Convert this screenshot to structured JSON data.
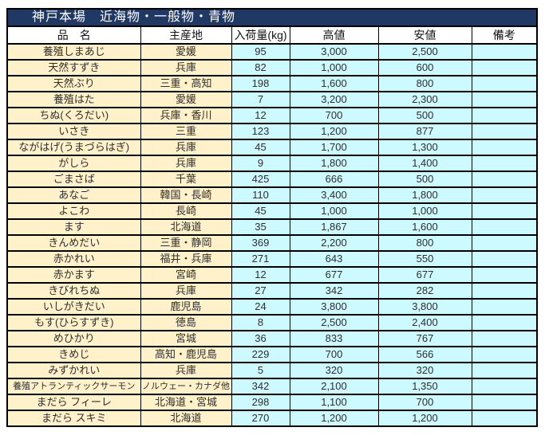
{
  "title": "神戸本場　近海物・一般物・青物",
  "table": {
    "columns": [
      "品　名",
      "主産地",
      "入荷量(kg)",
      "高値",
      "安値",
      "備考"
    ],
    "rows": [
      {
        "name": "養殖しまあじ",
        "origin": "愛媛",
        "quantity": "95",
        "high": "3,000",
        "low": "2,500",
        "note": ""
      },
      {
        "name": "天然すずき",
        "origin": "兵庫",
        "quantity": "82",
        "high": "1,000",
        "low": "600",
        "note": ""
      },
      {
        "name": "天然ぶり",
        "origin": "三重・高知",
        "quantity": "198",
        "high": "1,600",
        "low": "800",
        "note": ""
      },
      {
        "name": "養殖はた",
        "origin": "愛媛",
        "quantity": "7",
        "high": "3,200",
        "low": "2,300",
        "note": ""
      },
      {
        "name": "ちぬ(くろだい)",
        "origin": "兵庫・香川",
        "quantity": "12",
        "high": "700",
        "low": "500",
        "note": ""
      },
      {
        "name": "いさき",
        "origin": "三重",
        "quantity": "123",
        "high": "1,200",
        "low": "877",
        "note": ""
      },
      {
        "name": "ながはげ(うまづらはぎ)",
        "origin": "兵庫",
        "quantity": "45",
        "high": "1,700",
        "low": "1,300",
        "note": ""
      },
      {
        "name": "がしら",
        "origin": "兵庫",
        "quantity": "9",
        "high": "1,800",
        "low": "1,400",
        "note": ""
      },
      {
        "name": "ごまさば",
        "origin": "千葉",
        "quantity": "425",
        "high": "666",
        "low": "500",
        "note": ""
      },
      {
        "name": "あなご",
        "origin": "韓国・長崎",
        "quantity": "110",
        "high": "3,400",
        "low": "1,800",
        "note": ""
      },
      {
        "name": "よこわ",
        "origin": "長崎",
        "quantity": "45",
        "high": "1,000",
        "low": "1,000",
        "note": ""
      },
      {
        "name": "ます",
        "origin": "北海道",
        "quantity": "35",
        "high": "1,867",
        "low": "1,600",
        "note": ""
      },
      {
        "name": "きんめだい",
        "origin": "三重・静岡",
        "quantity": "369",
        "high": "2,200",
        "low": "800",
        "note": ""
      },
      {
        "name": "赤かれい",
        "origin": "福井・兵庫",
        "quantity": "271",
        "high": "643",
        "low": "550",
        "note": ""
      },
      {
        "name": "赤かます",
        "origin": "宮崎",
        "quantity": "12",
        "high": "677",
        "low": "677",
        "note": ""
      },
      {
        "name": "きびれちぬ",
        "origin": "兵庫",
        "quantity": "27",
        "high": "342",
        "low": "282",
        "note": ""
      },
      {
        "name": "いしがきだい",
        "origin": "鹿児島",
        "quantity": "24",
        "high": "3,800",
        "low": "3,800",
        "note": ""
      },
      {
        "name": "もす(ひらすずき)",
        "origin": "徳島",
        "quantity": "8",
        "high": "2,500",
        "low": "2,400",
        "note": ""
      },
      {
        "name": "めひかり",
        "origin": "宮城",
        "quantity": "36",
        "high": "833",
        "low": "767",
        "note": ""
      },
      {
        "name": "きめじ",
        "origin": "高知・鹿児島",
        "quantity": "229",
        "high": "700",
        "low": "566",
        "note": ""
      },
      {
        "name": "みずかれい",
        "origin": "兵庫",
        "quantity": "5",
        "high": "320",
        "low": "320",
        "note": ""
      },
      {
        "name": "養殖アトランティックサーモン",
        "origin": "ノルウェー・カナダ他",
        "quantity": "342",
        "high": "2,100",
        "low": "1,350",
        "note": ""
      },
      {
        "name": "まだら フィーレ",
        "origin": "北海道・宮城",
        "quantity": "298",
        "high": "1,100",
        "low": "700",
        "note": ""
      },
      {
        "name": "まだら スキミ",
        "origin": "北海道",
        "quantity": "270",
        "high": "1,200",
        "low": "1,200",
        "note": ""
      }
    ]
  },
  "colors": {
    "title_bg": "#1F3864",
    "title_text": "#FFFFFF",
    "name_bg": "#FFF1C9",
    "value_bg": "#CCFAFF",
    "header_bg": "#FFFFFF",
    "border": "#000000"
  }
}
